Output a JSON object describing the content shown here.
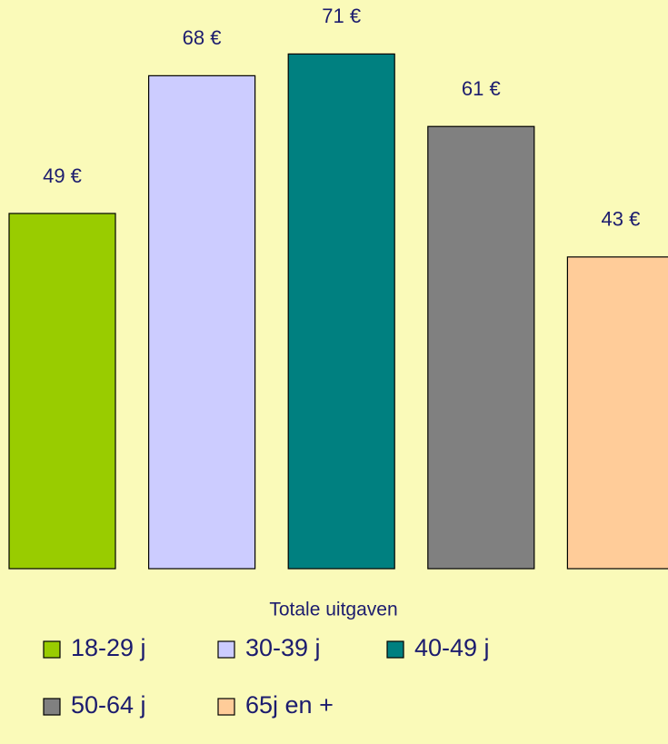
{
  "chart_data": {
    "type": "bar",
    "categories": [
      "Totale uitgaven"
    ],
    "series": [
      {
        "name": "18-29 j",
        "color": "#99cc00",
        "values": [
          49
        ],
        "value_labels": [
          "49 €"
        ]
      },
      {
        "name": "30-39 j",
        "color": "#ccccff",
        "values": [
          68
        ],
        "value_labels": [
          "68 €"
        ]
      },
      {
        "name": "40-49 j",
        "color": "#008080",
        "values": [
          71
        ],
        "value_labels": [
          "71 €"
        ]
      },
      {
        "name": "50-64 j",
        "color": "#808080",
        "values": [
          61
        ],
        "value_labels": [
          "61 €"
        ]
      },
      {
        "name": "65j en +",
        "color": "#ffcc99",
        "values": [
          43
        ],
        "value_labels": [
          "43 €"
        ]
      }
    ]
  }
}
